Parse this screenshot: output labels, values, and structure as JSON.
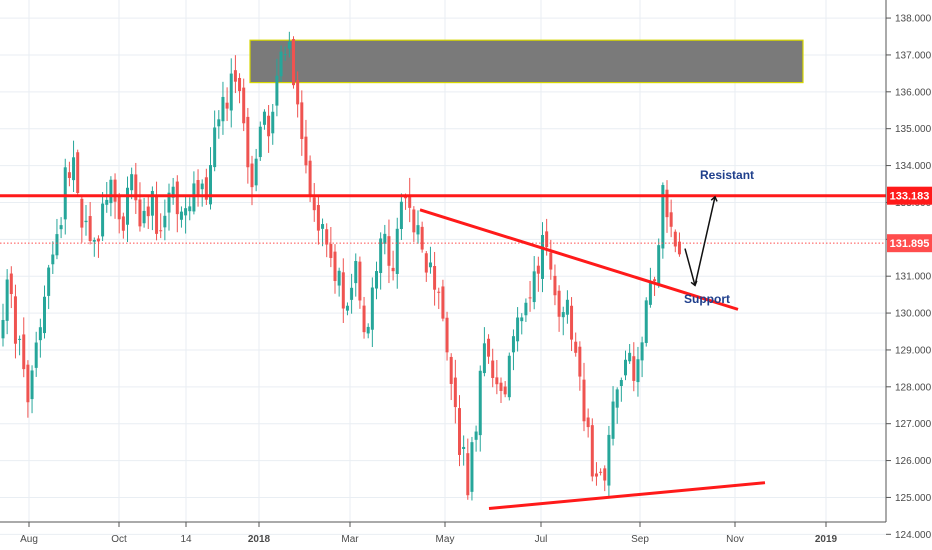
{
  "chart_data": {
    "type": "candlestick",
    "xlabels": [
      "Aug",
      "Oct",
      "14",
      "2018",
      "Mar",
      "May",
      "Jul",
      "Sep",
      "Nov",
      "2019"
    ],
    "yticks": [
      "124.000",
      "125.000",
      "126.000",
      "127.000",
      "128.000",
      "129.000",
      "130.000",
      "131.000",
      "132.000",
      "133.000",
      "134.000",
      "135.000",
      "136.000",
      "137.000",
      "138.000"
    ],
    "ylim": [
      123.9,
      138.3
    ],
    "grid": true,
    "colors": {
      "bull": "#26a69a",
      "bear": "#ef5350",
      "line_red": "#ff1a1a",
      "zone_fill": "#7a7a7a",
      "zone_border": "#d7d700",
      "annotation": "#1f3f8c",
      "grid": "#e9eef3",
      "axis": "#555555"
    },
    "price_tags": [
      {
        "label": "133.183",
        "value": 133.183,
        "color": "#ff1a1a"
      },
      {
        "label": "131.895",
        "value": 131.895,
        "color": "#ff4d4d"
      }
    ],
    "supply_zone": {
      "from_date": "2018-01",
      "to_date": "2018-11",
      "ymin": 136.25,
      "ymax": 137.4
    },
    "resistance_level": 133.183,
    "current_price": 131.895,
    "descending_trendline": {
      "start": [
        "2018-04",
        132.8
      ],
      "end": [
        "2018-10",
        130.1
      ]
    },
    "ascending_support_line": {
      "start": [
        "2018-05",
        124.7
      ],
      "end": [
        "2018-12",
        125.4
      ]
    },
    "annotations": [
      {
        "text": "Resistant",
        "at": [
          "2018-10",
          133.8
        ]
      },
      {
        "text": "Support",
        "at": [
          "2018-10",
          130.2
        ]
      }
    ],
    "projection_path": [
      [
        "2018-09",
        131.75
      ],
      [
        "2018-10",
        130.75
      ],
      [
        "2018-10",
        133.15
      ]
    ],
    "series_path": [
      [
        "2017-07",
        129.3
      ],
      [
        "2017-07",
        130.8
      ],
      [
        "2017-08",
        129.0
      ],
      [
        "2017-08",
        127.9
      ],
      [
        "2017-08",
        129.4
      ],
      [
        "2017-08",
        131.2
      ],
      [
        "2017-09",
        131.8
      ],
      [
        "2017-09",
        133.7
      ],
      [
        "2017-09",
        134.2
      ],
      [
        "2017-09",
        132.3
      ],
      [
        "2017-10",
        131.9
      ],
      [
        "2017-10",
        132.6
      ],
      [
        "2017-10",
        133.5
      ],
      [
        "2017-10",
        132.0
      ],
      [
        "2017-10",
        133.8
      ],
      [
        "2017-10",
        132.3
      ],
      [
        "2017-11",
        133.2
      ],
      [
        "2017-11",
        132.1
      ],
      [
        "2017-11",
        133.6
      ],
      [
        "2017-11",
        132.4
      ],
      [
        "2017-11",
        133.0
      ],
      [
        "2017-12",
        133.9
      ],
      [
        "2017-12",
        132.6
      ],
      [
        "2017-12",
        134.7
      ],
      [
        "2017-12",
        135.5
      ],
      [
        "2017-12",
        136.4
      ],
      [
        "2018-01",
        135.1
      ],
      [
        "2018-01",
        133.3
      ],
      [
        "2018-01",
        135.8
      ],
      [
        "2018-01",
        134.9
      ],
      [
        "2018-01",
        136.7
      ],
      [
        "2018-01",
        137.2
      ],
      [
        "2018-01",
        135.4
      ],
      [
        "2018-02",
        133.6
      ],
      [
        "2018-02",
        132.5
      ],
      [
        "2018-02",
        131.8
      ],
      [
        "2018-02",
        131.2
      ],
      [
        "2018-03",
        130.1
      ],
      [
        "2018-03",
        131.4
      ],
      [
        "2018-03",
        129.6
      ],
      [
        "2018-03",
        130.8
      ],
      [
        "2018-04",
        131.9
      ],
      [
        "2018-04",
        131.0
      ],
      [
        "2018-04",
        132.7
      ],
      [
        "2018-04",
        133.0
      ],
      [
        "2018-04",
        131.8
      ],
      [
        "2018-05",
        131.2
      ],
      [
        "2018-05",
        130.3
      ],
      [
        "2018-05",
        129.0
      ],
      [
        "2018-05",
        126.9
      ],
      [
        "2018-05",
        125.3
      ],
      [
        "2018-05",
        127.1
      ],
      [
        "2018-06",
        129.6
      ],
      [
        "2018-06",
        128.1
      ],
      [
        "2018-06",
        127.6
      ],
      [
        "2018-06",
        129.1
      ],
      [
        "2018-07",
        130.1
      ],
      [
        "2018-07",
        131.1
      ],
      [
        "2018-07",
        131.8
      ],
      [
        "2018-07",
        130.9
      ],
      [
        "2018-07",
        129.7
      ],
      [
        "2018-08",
        130.0
      ],
      [
        "2018-08",
        128.3
      ],
      [
        "2018-08",
        126.4
      ],
      [
        "2018-08",
        125.2
      ],
      [
        "2018-08",
        126.2
      ],
      [
        "2018-08",
        127.9
      ],
      [
        "2018-09",
        129.1
      ],
      [
        "2018-09",
        128.5
      ],
      [
        "2018-09",
        130.1
      ],
      [
        "2018-09",
        131.2
      ],
      [
        "2018-09",
        133.3
      ],
      [
        "2018-09",
        132.1
      ],
      [
        "2018-09",
        131.8
      ]
    ]
  }
}
